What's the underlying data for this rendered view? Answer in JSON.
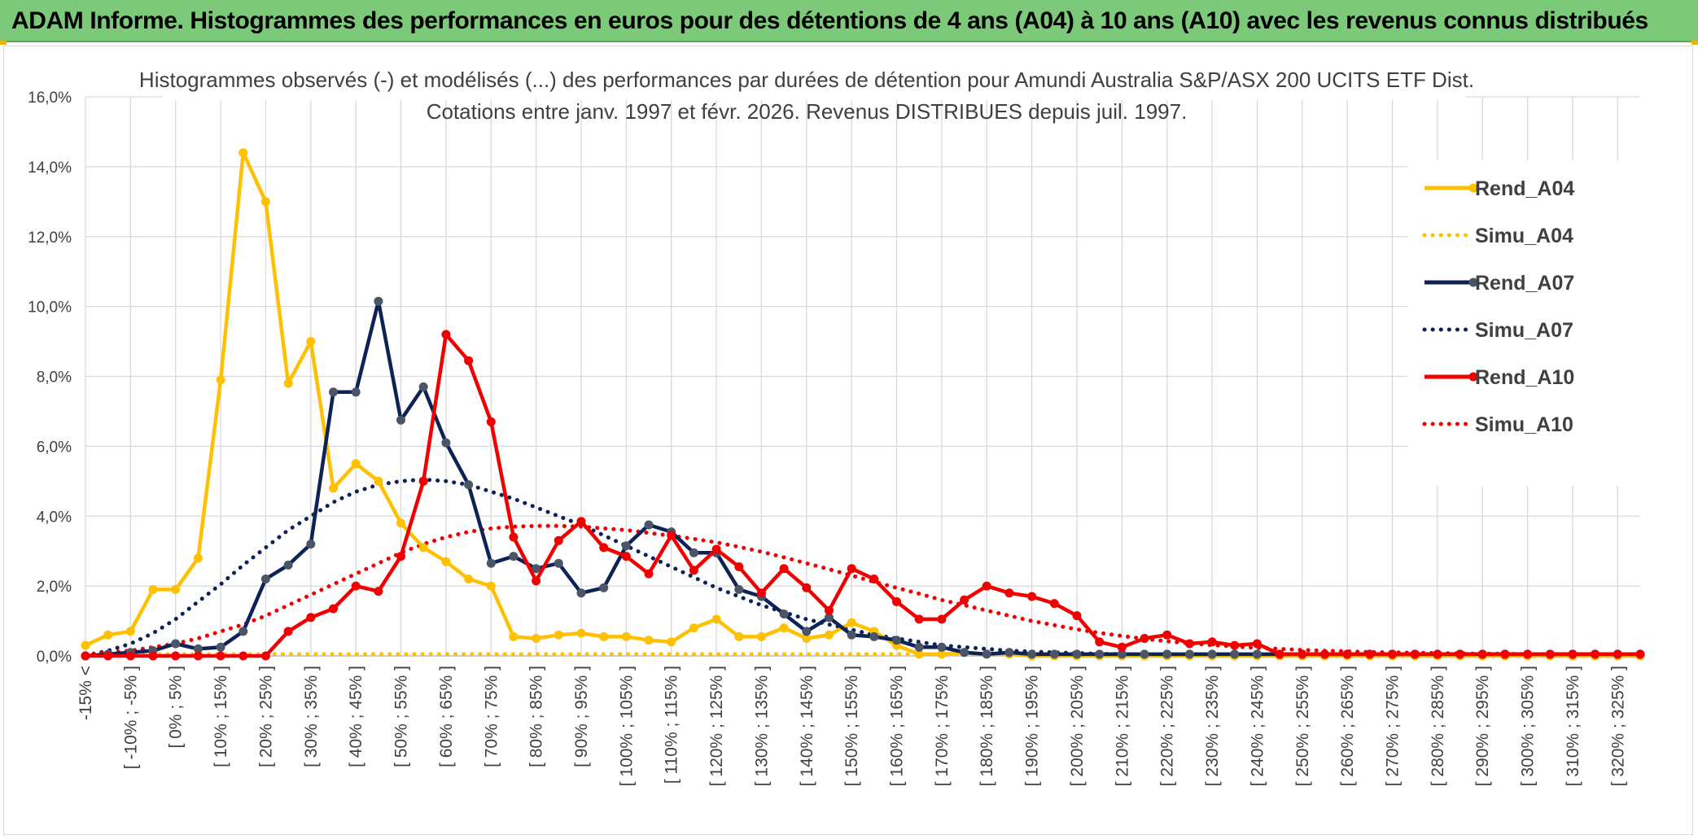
{
  "header": {
    "title": "ADAM Informe. Histogrammes des performances en euros pour des détentions de 4 ans (A04) à 10 ans (A10) avec les revenus connus distribués"
  },
  "colors": {
    "header_bg": "#7dc97a",
    "A04": "#FFC000",
    "A07": "#0D2357",
    "A07_marker": "#4A5668",
    "A10": "#F00000",
    "grid": "#D9D9D9"
  },
  "chart_data": {
    "type": "line",
    "title": "Histogrammes observés (-) et modélisés (...) des performances par durées de détention pour Amundi Australia S&P/ASX 200 UCITS ETF Dist.",
    "subtitle": "Cotations entre janv. 1997 et févr. 2026. Revenus DISTRIBUES depuis juil. 1997.",
    "xlabel": "",
    "ylabel": "",
    "ylim": [
      0,
      16
    ],
    "y_ticks": [
      "0,0%",
      "2,0%",
      "4,0%",
      "6,0%",
      "8,0%",
      "10,0%",
      "12,0%",
      "14,0%",
      "16,0%"
    ],
    "grid": true,
    "legend_position": "right",
    "x_tick_labels": [
      "-15% <",
      "[ -10% ; -5% ]",
      "[ 0% ; 5% ]",
      "[ 10% ; 15% ]",
      "[ 20% ; 25% ]",
      "[ 30% ; 35% ]",
      "[ 40% ; 45% ]",
      "[ 50% ; 55% ]",
      "[ 60% ; 65% ]",
      "[ 70% ; 75% ]",
      "[ 80% ; 85% ]",
      "[ 90% ; 95% ]",
      "[ 100% ; 105% ]",
      "[ 110% ; 115% ]",
      "[ 120% ; 125% ]",
      "[ 130% ; 135% ]",
      "[ 140% ; 145% ]",
      "[ 150% ; 155% ]",
      "[ 160% ; 165% ]",
      "[ 170% ; 175% ]",
      "[ 180% ; 185% ]",
      "[ 190% ; 195% ]",
      "[ 200% ; 205% ]",
      "[ 210% ; 215% ]",
      "[ 220% ; 225% ]",
      "[ 230% ; 235% ]",
      "[ 240% ; 245% ]",
      "[ 250% ; 255% ]",
      "[ 260% ; 265% ]",
      "[ 270% ; 275% ]",
      "[ 280% ; 285% ]",
      "[ 290% ; 295% ]",
      "[ 300% ; 305% ]",
      "[ 310% ; 315% ]",
      "[ 320% ; 325% ]"
    ],
    "x_tick_indices": [
      0,
      2,
      4,
      6,
      8,
      10,
      12,
      14,
      16,
      18,
      20,
      22,
      24,
      26,
      28,
      30,
      32,
      34,
      36,
      38,
      40,
      42,
      44,
      46,
      48,
      50,
      52,
      54,
      56,
      58,
      60,
      62,
      64,
      66,
      68
    ],
    "n_bins": 70,
    "series": [
      {
        "name": "Rend_A04",
        "style": "solid",
        "color": "#FFC000",
        "values": [
          0.3,
          0.6,
          0.7,
          1.9,
          1.9,
          2.8,
          7.9,
          14.4,
          13.0,
          7.8,
          9.0,
          4.8,
          5.5,
          5.0,
          3.8,
          3.1,
          2.7,
          2.2,
          2.0,
          0.55,
          0.5,
          0.6,
          0.65,
          0.55,
          0.55,
          0.45,
          0.4,
          0.8,
          1.05,
          0.55,
          0.55,
          0.8,
          0.5,
          0.6,
          0.95,
          0.7,
          0.3,
          0.05,
          0.05,
          0.1,
          0.05,
          0.05,
          0.0,
          0.0,
          0.0,
          0.0,
          0.0,
          0.0,
          0.0,
          0.0,
          0.0,
          0.0,
          0.0,
          0.0,
          0.0,
          0.0,
          0.0,
          0.0,
          0.0,
          0.0,
          0.0,
          0.0,
          0.0,
          0.0,
          0.0,
          0.0,
          0.0,
          0.0,
          0.0,
          0.0
        ]
      },
      {
        "name": "Simu_A04",
        "style": "dotted",
        "color": "#FFC000",
        "values": [
          0.05,
          0.05,
          0.05,
          0.05,
          0.05,
          0.05,
          0.05,
          0.05,
          0.05,
          0.05,
          0.05,
          0.05,
          0.05,
          0.05,
          0.05,
          0.05,
          0.05,
          0.05,
          0.05,
          0.05,
          0.05,
          0.05,
          0.05,
          0.05,
          0.05,
          0.05,
          0.05,
          0.05,
          0.05,
          0.05,
          0.05,
          0.05,
          0.05,
          0.05,
          0.05,
          0.05,
          0.05,
          0.05,
          0.05,
          0.05,
          0.05,
          0.05,
          0.05,
          0.05,
          0.05,
          0.05,
          0.05,
          0.05,
          0.05,
          0.05,
          0.05,
          0.05,
          0.05,
          0.05,
          0.05,
          0.05,
          0.05,
          0.05,
          0.05,
          0.05,
          0.05,
          0.05,
          0.05,
          0.05,
          0.05,
          0.05,
          0.05,
          0.05,
          0.05,
          0.05
        ]
      },
      {
        "name": "Rend_A07",
        "style": "solid",
        "color": "#0D2357",
        "values": [
          0.0,
          0.05,
          0.1,
          0.15,
          0.35,
          0.2,
          0.25,
          0.7,
          2.2,
          2.6,
          3.2,
          7.55,
          7.55,
          10.15,
          6.75,
          7.7,
          6.1,
          4.9,
          2.65,
          2.85,
          2.5,
          2.65,
          1.8,
          1.95,
          3.15,
          3.75,
          3.55,
          2.95,
          2.95,
          1.9,
          1.7,
          1.2,
          0.7,
          1.1,
          0.6,
          0.55,
          0.45,
          0.25,
          0.25,
          0.1,
          0.05,
          0.1,
          0.05,
          0.05,
          0.05,
          0.05,
          0.05,
          0.05,
          0.05,
          0.05,
          0.05,
          0.05,
          0.05,
          0.05,
          0.05,
          0.05,
          0.05,
          0.05,
          0.05,
          0.05,
          0.05,
          0.05,
          0.05,
          0.05,
          0.05,
          0.05,
          0.05,
          0.05,
          0.05,
          0.05
        ]
      },
      {
        "name": "Simu_A07",
        "style": "dotted",
        "color": "#0D2357",
        "values": [
          0.0,
          0.15,
          0.35,
          0.65,
          1.05,
          1.55,
          2.05,
          2.6,
          3.1,
          3.6,
          4.0,
          4.4,
          4.7,
          4.9,
          5.0,
          5.05,
          5.0,
          4.9,
          4.7,
          4.5,
          4.25,
          4.0,
          3.75,
          3.45,
          3.15,
          2.85,
          2.55,
          2.25,
          1.95,
          1.7,
          1.45,
          1.25,
          1.05,
          0.9,
          0.75,
          0.6,
          0.5,
          0.4,
          0.3,
          0.25,
          0.2,
          0.15,
          0.12,
          0.1,
          0.08,
          0.06,
          0.05,
          0.04,
          0.03,
          0.02,
          0.02,
          0.01,
          0.01,
          0.01,
          0.0,
          0.0,
          0.0,
          0.0,
          0.0,
          0.0,
          0.0,
          0.0,
          0.0,
          0.0,
          0.0,
          0.0,
          0.0,
          0.0,
          0.0,
          0.0
        ]
      },
      {
        "name": "Rend_A10",
        "style": "solid",
        "color": "#F00000",
        "values": [
          0.0,
          0.0,
          0.0,
          0.0,
          0.0,
          0.0,
          0.0,
          0.0,
          0.0,
          0.7,
          1.1,
          1.35,
          2.0,
          1.85,
          2.85,
          5.0,
          9.2,
          8.45,
          6.7,
          3.4,
          2.15,
          3.3,
          3.85,
          3.1,
          2.85,
          2.35,
          3.45,
          2.45,
          3.05,
          2.55,
          1.8,
          2.5,
          1.95,
          1.3,
          2.5,
          2.2,
          1.55,
          1.05,
          1.05,
          1.6,
          2.0,
          1.8,
          1.7,
          1.5,
          1.15,
          0.4,
          0.25,
          0.5,
          0.6,
          0.35,
          0.4,
          0.3,
          0.35,
          0.05,
          0.05,
          0.05,
          0.05,
          0.05,
          0.05,
          0.05,
          0.05,
          0.05,
          0.05,
          0.05,
          0.05,
          0.05,
          0.05,
          0.05,
          0.05,
          0.05
        ]
      },
      {
        "name": "Simu_A10",
        "style": "dotted",
        "color": "#F00000",
        "values": [
          0.05,
          0.1,
          0.15,
          0.25,
          0.35,
          0.5,
          0.7,
          0.9,
          1.15,
          1.45,
          1.75,
          2.05,
          2.35,
          2.65,
          2.95,
          3.2,
          3.4,
          3.55,
          3.65,
          3.7,
          3.72,
          3.72,
          3.7,
          3.65,
          3.6,
          3.52,
          3.44,
          3.35,
          3.25,
          3.12,
          2.98,
          2.82,
          2.65,
          2.48,
          2.3,
          2.12,
          1.95,
          1.78,
          1.6,
          1.45,
          1.3,
          1.15,
          1.0,
          0.88,
          0.76,
          0.66,
          0.57,
          0.49,
          0.42,
          0.36,
          0.31,
          0.27,
          0.23,
          0.2,
          0.17,
          0.15,
          0.13,
          0.11,
          0.1,
          0.09,
          0.08,
          0.07,
          0.06,
          0.06,
          0.05,
          0.05,
          0.05,
          0.04,
          0.04,
          0.04
        ]
      }
    ]
  }
}
